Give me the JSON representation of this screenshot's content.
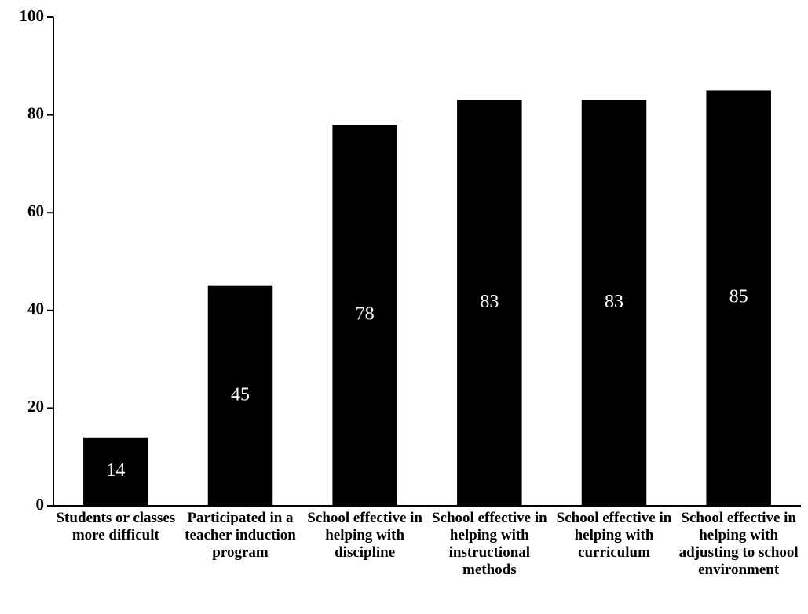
{
  "chart_data": {
    "type": "bar",
    "categories": [
      "Students or classes more difficult",
      "Participated in a teacher induction program",
      "School effective in helping with discipline",
      "School effective in helping with instructional methods",
      "School effective in helping with curriculum",
      "School effective in helping with adjusting to school environment"
    ],
    "values": [
      14,
      45,
      78,
      83,
      83,
      85
    ],
    "color": "#000000",
    "ylim": [
      0,
      100
    ],
    "yticks": [
      0,
      20,
      40,
      60,
      80,
      100
    ],
    "grid": false
  }
}
